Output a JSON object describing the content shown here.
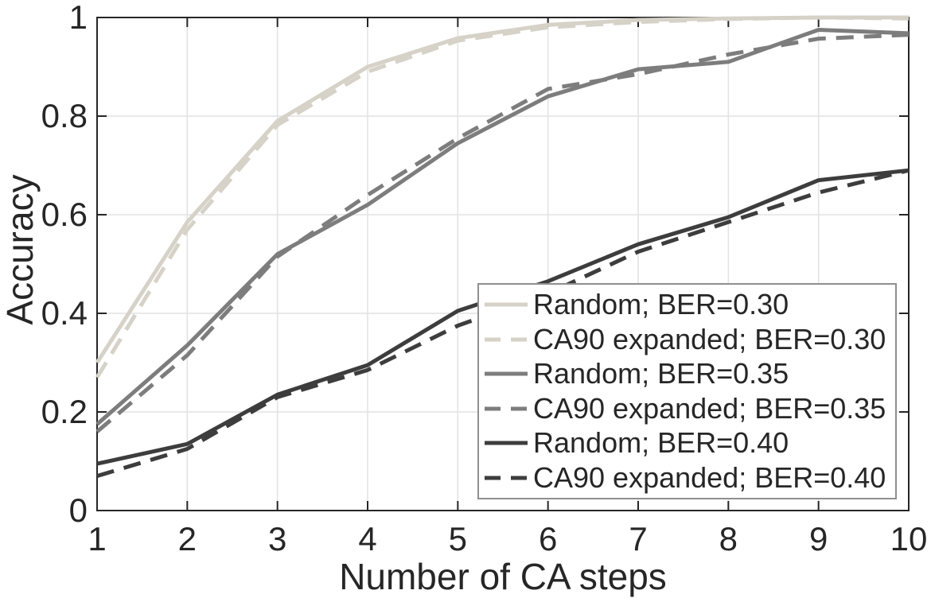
{
  "figure": {
    "background": "#ffffff",
    "axis_color": "#262626",
    "grid_color": "#e2e2e2",
    "legend_border_color": "#8f8f8f",
    "text_color": "#262626"
  },
  "chart_data": {
    "type": "line",
    "title": "",
    "xlabel": "Number of CA steps",
    "ylabel": "Accuracy",
    "x": [
      1,
      2,
      3,
      4,
      5,
      6,
      7,
      8,
      9,
      10
    ],
    "xlim": [
      1,
      10
    ],
    "ylim": [
      0,
      1
    ],
    "xticks": [
      1,
      2,
      3,
      4,
      5,
      6,
      7,
      8,
      9,
      10
    ],
    "xtick_labels": [
      "1",
      "2",
      "3",
      "4",
      "5",
      "6",
      "7",
      "8",
      "9",
      "10"
    ],
    "yticks": [
      0,
      0.2,
      0.4,
      0.6,
      0.8,
      1
    ],
    "ytick_labels": [
      "0",
      "0.2",
      "0.4",
      "0.6",
      "0.8",
      "1"
    ],
    "grid": true,
    "legend_position": "inside-lower-right",
    "series": [
      {
        "name": "Random; BER=0.30",
        "color": "#d6d2c8",
        "style": "solid",
        "values": [
          0.3,
          0.585,
          0.79,
          0.9,
          0.958,
          0.985,
          0.995,
          0.998,
          1.0,
          1.0
        ]
      },
      {
        "name": "CA90 expanded; BER=0.30",
        "color": "#d6d2c8",
        "style": "dashed",
        "values": [
          0.27,
          0.57,
          0.782,
          0.89,
          0.953,
          0.98,
          0.991,
          0.997,
          1.0,
          0.998
        ]
      },
      {
        "name": "Random; BER=0.35",
        "color": "#7d7d7d",
        "style": "solid",
        "values": [
          0.175,
          0.335,
          0.52,
          0.62,
          0.745,
          0.84,
          0.895,
          0.91,
          0.975,
          0.968
        ]
      },
      {
        "name": "CA90 expanded; BER=0.35",
        "color": "#7d7d7d",
        "style": "dashed",
        "values": [
          0.16,
          0.315,
          0.515,
          0.64,
          0.755,
          0.855,
          0.885,
          0.925,
          0.957,
          0.965
        ]
      },
      {
        "name": "Random; BER=0.40",
        "color": "#3d3d3d",
        "style": "solid",
        "values": [
          0.095,
          0.135,
          0.235,
          0.295,
          0.405,
          0.465,
          0.54,
          0.595,
          0.67,
          0.69
        ]
      },
      {
        "name": "CA90 expanded; BER=0.40",
        "color": "#3d3d3d",
        "style": "dashed",
        "values": [
          0.07,
          0.125,
          0.23,
          0.285,
          0.375,
          0.44,
          0.525,
          0.585,
          0.645,
          0.69
        ]
      }
    ]
  }
}
